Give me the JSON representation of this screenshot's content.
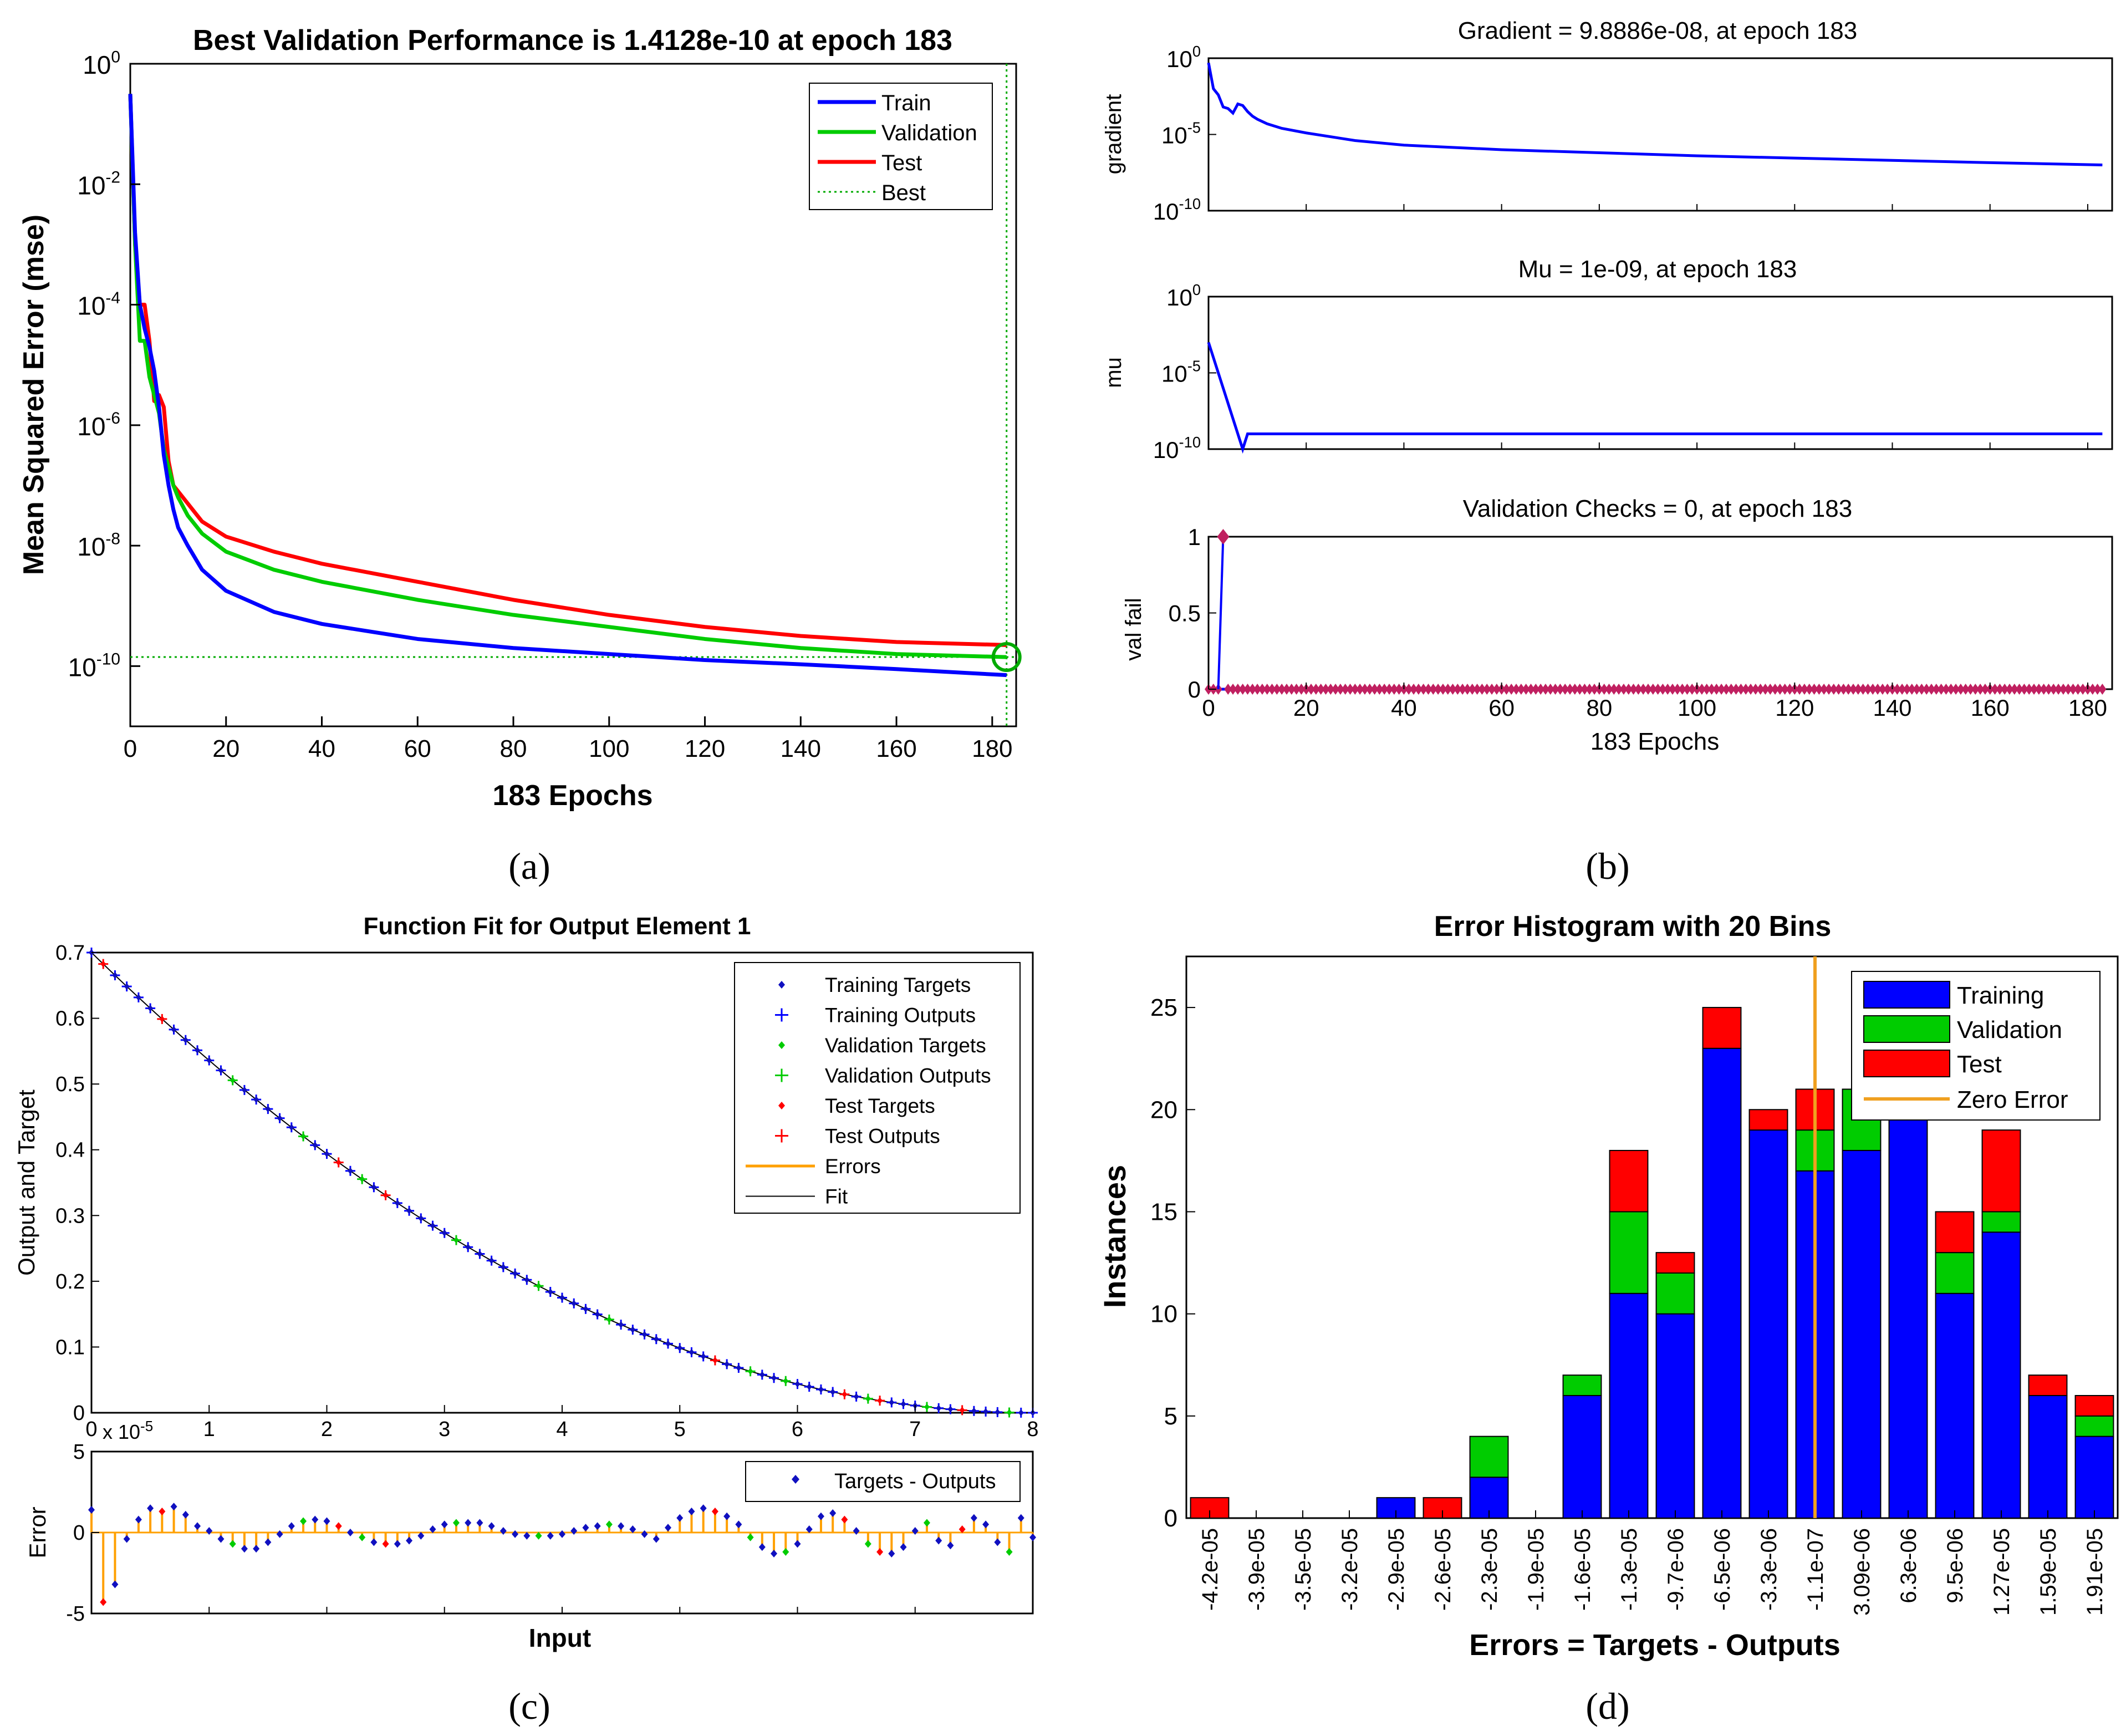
{
  "captions": [
    "(a)",
    "(b)",
    "(c)",
    "(d)"
  ],
  "colors": {
    "train": "#0000ff",
    "validation": "#00cc00",
    "test": "#ff0000",
    "best": "#00aa00",
    "error_orange": "#ffa000",
    "hist_train": "#0000ff",
    "hist_val": "#00cc00",
    "hist_test": "#ff0000",
    "zero_error": "#f0a020",
    "axis": "#000000"
  },
  "chart_data": [
    {
      "id": "a",
      "type": "line",
      "title": "Best Validation Performance is 1.4128e-10 at epoch 183",
      "xlabel": "183 Epochs",
      "ylabel": "Mean Squared Error  (mse)",
      "yscale": "log",
      "xlim": [
        0,
        185
      ],
      "ylim_exp": [
        -11,
        0
      ],
      "xticks": [
        0,
        20,
        40,
        60,
        80,
        100,
        120,
        140,
        160,
        180
      ],
      "yticks": [
        {
          "exp": 0,
          "base": "10",
          "sup": "0"
        },
        {
          "exp": -2,
          "base": "10",
          "sup": "-2"
        },
        {
          "exp": -4,
          "base": "10",
          "sup": "-4"
        },
        {
          "exp": -6,
          "base": "10",
          "sup": "-6"
        },
        {
          "exp": -8,
          "base": "10",
          "sup": "-8"
        },
        {
          "exp": -10,
          "base": "10",
          "sup": "-10"
        }
      ],
      "legend": [
        "Train",
        "Validation",
        "Test",
        "Best"
      ],
      "best_epoch": 183,
      "best_value": 1.4128e-10,
      "series": [
        {
          "name": "Train",
          "x": [
            0,
            1,
            2,
            3,
            4,
            5,
            6,
            7,
            8,
            9,
            10,
            12,
            15,
            20,
            30,
            40,
            60,
            80,
            100,
            120,
            140,
            160,
            183
          ],
          "y_exp": [
            -0.5,
            -2.8,
            -4.0,
            -4.4,
            -4.7,
            -5.1,
            -5.7,
            -6.5,
            -7.0,
            -7.4,
            -7.7,
            -8.0,
            -8.4,
            -8.75,
            -9.1,
            -9.3,
            -9.55,
            -9.7,
            -9.8,
            -9.9,
            -9.97,
            -10.05,
            -10.15
          ]
        },
        {
          "name": "Validation",
          "x": [
            0,
            1,
            2,
            3,
            4,
            5,
            6,
            7,
            8,
            9,
            10,
            12,
            15,
            20,
            30,
            40,
            60,
            80,
            100,
            120,
            140,
            160,
            183
          ],
          "y_exp": [
            -0.5,
            -3.0,
            -4.6,
            -4.6,
            -5.2,
            -5.5,
            -5.8,
            -6.4,
            -6.7,
            -7.0,
            -7.2,
            -7.5,
            -7.8,
            -8.1,
            -8.4,
            -8.6,
            -8.9,
            -9.15,
            -9.35,
            -9.55,
            -9.7,
            -9.8,
            -9.85
          ]
        },
        {
          "name": "Test",
          "x": [
            0,
            1,
            2,
            3,
            4,
            5,
            6,
            7,
            8,
            9,
            10,
            12,
            15,
            20,
            30,
            40,
            60,
            80,
            100,
            120,
            140,
            160,
            183
          ],
          "y_exp": [
            -0.5,
            -3.0,
            -4.0,
            -4.0,
            -4.6,
            -5.6,
            -5.5,
            -5.7,
            -6.6,
            -7.0,
            -7.1,
            -7.3,
            -7.6,
            -7.85,
            -8.1,
            -8.3,
            -8.6,
            -8.9,
            -9.15,
            -9.35,
            -9.5,
            -9.6,
            -9.65
          ]
        }
      ]
    },
    {
      "id": "b",
      "type": "line",
      "xlabel": "183 Epochs",
      "xlim": [
        0,
        185
      ],
      "xticks": [
        0,
        20,
        40,
        60,
        80,
        100,
        120,
        140,
        160,
        180
      ],
      "panels": [
        {
          "title": "Gradient = 9.8886e-08, at epoch 183",
          "ylabel": "gradient",
          "yscale": "log",
          "ylim_exp": [
            -10,
            0
          ],
          "yticks": [
            {
              "exp": 0,
              "base": "10",
              "sup": "0"
            },
            {
              "exp": -5,
              "base": "10",
              "sup": "-5"
            },
            {
              "exp": -10,
              "base": "10",
              "sup": "-10"
            }
          ],
          "x": [
            0,
            1,
            2,
            3,
            4,
            5,
            6,
            7,
            8,
            9,
            10,
            12,
            15,
            20,
            30,
            40,
            60,
            80,
            100,
            120,
            140,
            160,
            183
          ],
          "y_exp": [
            -0.3,
            -2.0,
            -2.4,
            -3.2,
            -3.3,
            -3.6,
            -3.0,
            -3.1,
            -3.5,
            -3.8,
            -4.0,
            -4.3,
            -4.6,
            -4.9,
            -5.4,
            -5.7,
            -6.0,
            -6.2,
            -6.4,
            -6.55,
            -6.7,
            -6.85,
            -7.0
          ]
        },
        {
          "title": "Mu = 1e-09, at epoch 183",
          "ylabel": "mu",
          "yscale": "log",
          "ylim_exp": [
            -10,
            0
          ],
          "yticks": [
            {
              "exp": 0,
              "base": "10",
              "sup": "0"
            },
            {
              "exp": -5,
              "base": "10",
              "sup": "-5"
            },
            {
              "exp": -10,
              "base": "10",
              "sup": "-10"
            }
          ],
          "x": [
            0,
            1,
            2,
            3,
            4,
            5,
            6,
            7,
            8,
            183
          ],
          "y_exp": [
            -3.0,
            -4.0,
            -5.0,
            -6.0,
            -7.0,
            -8.0,
            -9.0,
            -10.0,
            -9.0,
            -9.0
          ]
        },
        {
          "title": "Validation Checks = 0, at epoch 183",
          "ylabel": "val fail",
          "ylim": [
            0,
            1
          ],
          "yticks": [
            0,
            0.5,
            1
          ],
          "ytick_labels": [
            "0",
            "0.5",
            "1"
          ],
          "spike_epoch": 3,
          "spike_value": 1
        }
      ]
    },
    {
      "id": "c",
      "type": "scatter",
      "title": "Function Fit for Output Element 1",
      "xlabel": "Input",
      "ylabel": "Output and Target",
      "error_ylabel": "Error",
      "error_scale": "x 10",
      "error_scale_exp": "-5",
      "xlim": [
        0,
        8
      ],
      "ylim": [
        0,
        0.7
      ],
      "xticks": [
        0,
        1,
        2,
        3,
        4,
        5,
        6,
        7,
        8
      ],
      "yticks": [
        0,
        0.1,
        0.2,
        0.3,
        0.4,
        0.5,
        0.6,
        0.7
      ],
      "ytick_labels": [
        "0",
        "0.1",
        "0.2",
        "0.3",
        "0.4",
        "0.5",
        "0.6",
        "0.7"
      ],
      "error_yticks": [
        -5,
        0,
        5
      ],
      "error_ylim": [
        -5,
        5
      ],
      "legend": [
        "Training Targets",
        "Training Outputs",
        "Validation Targets",
        "Validation Outputs",
        "Test Targets",
        "Test Outputs",
        "Errors",
        "Fit"
      ],
      "error_legend": [
        "Targets - Outputs"
      ],
      "curve": "y = 0.7 * (1 - x/8)^2",
      "n_points": 81,
      "validation_indices": [
        12,
        18,
        23,
        31,
        38,
        44,
        56,
        59,
        66,
        71,
        78
      ],
      "test_indices": [
        1,
        6,
        21,
        25,
        53,
        64,
        67,
        74
      ],
      "errors_x1e5": [
        1.4,
        -4.3,
        -3.2,
        -0.4,
        0.8,
        1.5,
        1.3,
        1.6,
        1.1,
        0.4,
        0.1,
        -0.4,
        -0.7,
        -1.0,
        -1.0,
        -0.6,
        -0.1,
        0.4,
        0.7,
        0.8,
        0.7,
        0.4,
        0.0,
        -0.3,
        -0.6,
        -0.7,
        -0.7,
        -0.5,
        -0.2,
        0.2,
        0.5,
        0.6,
        0.6,
        0.6,
        0.4,
        0.1,
        -0.1,
        -0.2,
        -0.2,
        -0.2,
        -0.1,
        0.1,
        0.3,
        0.4,
        0.5,
        0.4,
        0.2,
        -0.1,
        -0.4,
        0.3,
        0.9,
        1.3,
        1.5,
        1.3,
        1.0,
        0.5,
        -0.3,
        -0.9,
        -1.3,
        -1.2,
        -0.7,
        0.2,
        1.0,
        1.2,
        0.8,
        0.1,
        -0.7,
        -1.2,
        -1.3,
        -0.9,
        0.1,
        0.6,
        -0.5,
        -0.8,
        0.2,
        0.9,
        0.5,
        -0.6,
        -1.2,
        0.9,
        -0.3
      ]
    },
    {
      "id": "d",
      "type": "bar",
      "title": "Error Histogram with 20 Bins",
      "xlabel": "Errors = Targets - Outputs",
      "ylabel": "Instances",
      "ylim": [
        0,
        27.5
      ],
      "yticks": [
        0,
        5,
        10,
        15,
        20,
        25
      ],
      "categories": [
        "-4.2e-05",
        "-3.9e-05",
        "-3.5e-05",
        "-3.2e-05",
        "-2.9e-05",
        "-2.6e-05",
        "-2.3e-05",
        "-1.9e-05",
        "-1.6e-05",
        "-1.3e-05",
        "-9.7e-06",
        "-6.5e-06",
        "-3.3e-06",
        "-1.1e-07",
        "3.09e-06",
        "6.3e-06",
        "9.5e-06",
        "1.27e-05",
        "1.59e-05",
        "1.91e-05"
      ],
      "series": [
        {
          "name": "Training",
          "values": [
            0,
            0,
            0,
            0,
            1,
            0,
            2,
            0,
            6,
            11,
            10,
            23,
            19,
            17,
            18,
            20,
            11,
            14,
            6,
            4
          ]
        },
        {
          "name": "Validation",
          "values": [
            0,
            0,
            0,
            0,
            0,
            0,
            2,
            0,
            1,
            4,
            2,
            0,
            0,
            2,
            3,
            0,
            2,
            1,
            0,
            1
          ]
        },
        {
          "name": "Test",
          "values": [
            1,
            0,
            0,
            0,
            0,
            1,
            0,
            0,
            0,
            3,
            1,
            2,
            1,
            2,
            0,
            0,
            2,
            4,
            1,
            1
          ]
        }
      ],
      "legend": [
        "Training",
        "Validation",
        "Test",
        "Zero Error"
      ],
      "zero_error_bin": 13
    }
  ]
}
